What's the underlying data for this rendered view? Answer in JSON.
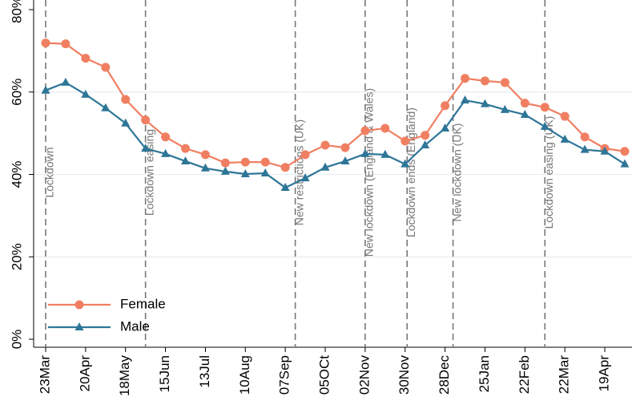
{
  "chart_data": {
    "type": "line",
    "categories": [
      "23Mar",
      null,
      "20Apr",
      null,
      "18May",
      null,
      "15Jun",
      null,
      "13Jul",
      null,
      "10Aug",
      null,
      "07Sep",
      null,
      "05OCt",
      null,
      "02Nov",
      null,
      "30Nov",
      null,
      "28Dec",
      null,
      "25Jan",
      null,
      "22Feb",
      null,
      "22Mar",
      null,
      "19Apr",
      null
    ],
    "series": [
      {
        "name": "Female",
        "color": "#f07f62",
        "marker": "circle",
        "values": [
          71.9,
          71.7,
          68.2,
          66.0,
          58.2,
          53.2,
          49.1,
          46.3,
          44.8,
          42.8,
          43.0,
          43.0,
          41.7,
          44.8,
          47.1,
          46.5,
          50.6,
          51.2,
          48.1,
          49.5,
          56.7,
          63.3,
          62.7,
          62.3,
          57.3,
          56.3,
          54.1,
          49.1,
          46.3,
          45.6
        ]
      },
      {
        "name": "Male",
        "color": "#2e7697",
        "marker": "triangle",
        "values": [
          60.4,
          62.3,
          59.4,
          56.1,
          52.4,
          46.3,
          45.0,
          43.2,
          41.5,
          40.7,
          40.1,
          40.3,
          36.8,
          39.1,
          41.7,
          43.2,
          45.0,
          44.8,
          42.5,
          47.1,
          51.2,
          58.0,
          57.1,
          55.7,
          54.5,
          51.6,
          48.5,
          46.0,
          45.6,
          42.5
        ]
      }
    ],
    "ylim": [
      0,
      80
    ],
    "yticks": [
      {
        "value": 0,
        "label": "0%"
      },
      {
        "value": 20,
        "label": "20%"
      },
      {
        "value": 40,
        "label": "40%"
      },
      {
        "value": 60,
        "label": "60%"
      },
      {
        "value": 80,
        "label": "80%"
      }
    ],
    "grid": true,
    "legend": "lower left",
    "annotations": [
      {
        "text": "Lockdown",
        "x": 0
      },
      {
        "text": "Lockdown easing",
        "x": 5
      },
      {
        "text": "New restrictions (UK)",
        "x": 12.5
      },
      {
        "text": "New lockdown (England & Wales)",
        "x": 16
      },
      {
        "text": "Lockdown ends (England)",
        "x": 18.1
      },
      {
        "text": "New lockdown (UK)",
        "x": 20.4
      },
      {
        "text": "Lockdown easing (UK)",
        "x": 25
      }
    ]
  }
}
